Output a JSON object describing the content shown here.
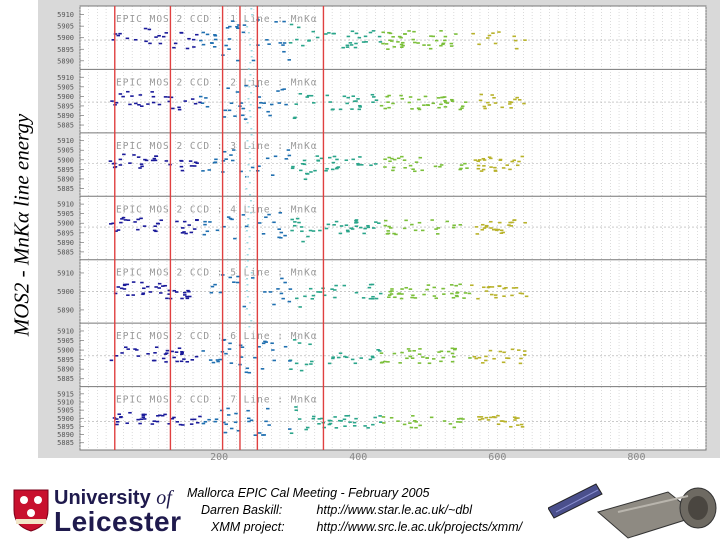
{
  "side_title": "MOS2 - MnKα line energy",
  "chart_data": {
    "type": "scatter",
    "x_ticks": [
      "200",
      "400",
      "600",
      "800"
    ],
    "x_tick_values": [
      200,
      400,
      600,
      800
    ],
    "xlim": [
      0,
      900
    ],
    "gridlines": true,
    "marker_vlines": [
      50,
      130,
      205,
      230,
      255,
      350
    ],
    "series_colors": [
      "#1a1a9a",
      "#1f6fb0",
      "#2aa58a",
      "#7bbf3a",
      "#b8b22a"
    ],
    "panels": [
      {
        "label": "EPIC MOS 2  CCD : 1  Line : MnKα",
        "yticks": [
          "5910",
          "5905",
          "5900",
          "5895",
          "5890"
        ],
        "yrange": [
          5888,
          5912
        ],
        "center": 5899
      },
      {
        "label": "EPIC MOS 2  CCD : 2  Line : MnKα",
        "yticks": [
          "5910",
          "5905",
          "5900",
          "5895",
          "5890",
          "5885"
        ],
        "yrange": [
          5883,
          5912
        ],
        "center": 5897
      },
      {
        "label": "EPIC MOS 2  CCD : 3  Line : MnKα",
        "yticks": [
          "5910",
          "5905",
          "5900",
          "5895",
          "5890",
          "5885"
        ],
        "yrange": [
          5883,
          5912
        ],
        "center": 5898
      },
      {
        "label": "EPIC MOS 2  CCD : 4  Line : MnKα",
        "yticks": [
          "5910",
          "5905",
          "5900",
          "5895",
          "5890",
          "5885"
        ],
        "yrange": [
          5883,
          5912
        ],
        "center": 5898
      },
      {
        "label": "EPIC MOS 2  CCD : 5  Line : MnKα",
        "yticks": [
          "5910",
          "5900",
          "5890"
        ],
        "yrange": [
          5885,
          5915
        ],
        "center": 5900
      },
      {
        "label": "EPIC MOS 2  CCD : 6  Line : MnKα",
        "yticks": [
          "5910",
          "5905",
          "5900",
          "5895",
          "5890",
          "5885"
        ],
        "yrange": [
          5883,
          5912
        ],
        "center": 5897
      },
      {
        "label": "EPIC MOS 2  CCD : 7  Line : MnKα",
        "yticks": [
          "5915",
          "5910",
          "5905",
          "5900",
          "5895",
          "5890",
          "5885"
        ],
        "yrange": [
          5883,
          5917
        ],
        "center": 5898
      }
    ]
  },
  "footer": {
    "university_line1": "University",
    "university_of": "of",
    "university_line2": "Leicester",
    "meeting": "Mallorca EPIC Cal Meeting - February 2005",
    "name_label": "Darren Baskill:",
    "name_url": "http://www.star.le.ac.uk/~dbl",
    "project_label": "XMM project:",
    "project_url": "http://www.src.le.ac.uk/projects/xmm/"
  }
}
